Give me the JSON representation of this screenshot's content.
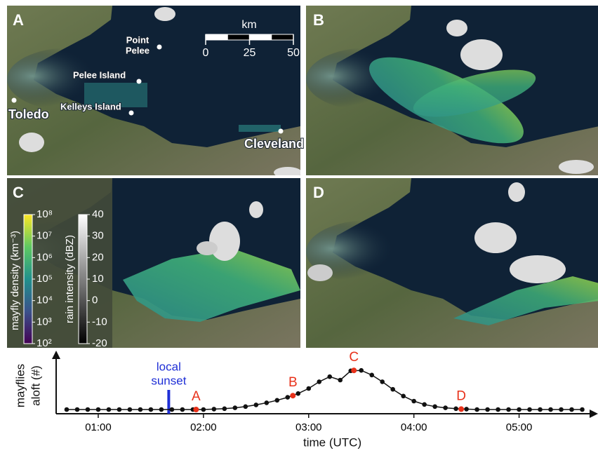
{
  "panels": [
    {
      "letter": "A",
      "places": {
        "point_pelee": [
          "Point",
          "Pelee"
        ],
        "pelee_island": "Pelee Island",
        "kelleys_island": "Kelleys Island",
        "toledo": "Toledo",
        "cleveland": "Cleveland"
      },
      "scale": {
        "unit": "km",
        "ticks": [
          0,
          25,
          50
        ]
      }
    },
    {
      "letter": "B"
    },
    {
      "letter": "C",
      "density_bar": {
        "title": "mayfly density (km⁻³)",
        "ticks": [
          {
            "value": 100000000,
            "label": "10⁸"
          },
          {
            "value": 10000000,
            "label": "10⁷"
          },
          {
            "value": 1000000,
            "label": "10⁶"
          },
          {
            "value": 100000,
            "label": "10⁵"
          },
          {
            "value": 10000,
            "label": "10⁴"
          },
          {
            "value": 1000,
            "label": "10³"
          },
          {
            "value": 100,
            "label": "10²"
          }
        ]
      },
      "rain_bar": {
        "title": "rain intensity (dBZ)",
        "ticks": [
          40,
          30,
          20,
          10,
          0,
          -10,
          -20
        ]
      }
    },
    {
      "letter": "D"
    }
  ],
  "chart_data": {
    "type": "line",
    "ylabel": [
      "mayflies",
      "aloft (#)"
    ],
    "xlabel": "time (UTC)",
    "color": "#111111",
    "x": [
      0.7,
      0.8,
      0.9,
      1.0,
      1.1,
      1.2,
      1.3,
      1.4,
      1.5,
      1.6,
      1.7,
      1.8,
      1.9,
      2.0,
      2.1,
      2.2,
      2.3,
      2.4,
      2.5,
      2.6,
      2.7,
      2.8,
      2.9,
      3.0,
      3.1,
      3.2,
      3.3,
      3.4,
      3.5,
      3.6,
      3.7,
      3.8,
      3.9,
      4.0,
      4.1,
      4.2,
      4.3,
      4.4,
      4.5,
      4.6,
      4.7,
      4.8,
      4.9,
      5.0,
      5.1,
      5.2,
      5.3,
      5.4,
      5.5,
      5.6
    ],
    "values": [
      0,
      0,
      0,
      0,
      0,
      0,
      0,
      0,
      0,
      0,
      0,
      0,
      0,
      0,
      0.01,
      0.02,
      0.04,
      0.07,
      0.11,
      0.16,
      0.22,
      0.29,
      0.38,
      0.5,
      0.66,
      0.78,
      0.7,
      0.92,
      0.93,
      0.82,
      0.66,
      0.48,
      0.32,
      0.2,
      0.12,
      0.07,
      0.04,
      0.02,
      0.01,
      0,
      0,
      0,
      0,
      0,
      0,
      0,
      0,
      0,
      0,
      0
    ],
    "xlim": [
      0.6,
      5.75
    ],
    "ylim": [
      -0.1,
      1.15
    ],
    "xticks": [
      {
        "value": 1,
        "label": "01:00"
      },
      {
        "value": 2,
        "label": "02:00"
      },
      {
        "value": 3,
        "label": "03:00"
      },
      {
        "value": 4,
        "label": "04:00"
      },
      {
        "value": 5,
        "label": "05:00"
      }
    ],
    "sunset": {
      "x": 1.67,
      "label": [
        "local",
        "sunset"
      ],
      "color": "#1f2fd6"
    },
    "annotations": [
      {
        "label": "A",
        "x": 1.93,
        "y": 0,
        "color": "#e8311a"
      },
      {
        "label": "B",
        "x": 2.85,
        "y": 0.33,
        "color": "#e8311a"
      },
      {
        "label": "C",
        "x": 3.43,
        "y": 0.93,
        "color": "#e8311a"
      },
      {
        "label": "D",
        "x": 4.45,
        "y": 0.01,
        "color": "#e8311a"
      }
    ]
  }
}
